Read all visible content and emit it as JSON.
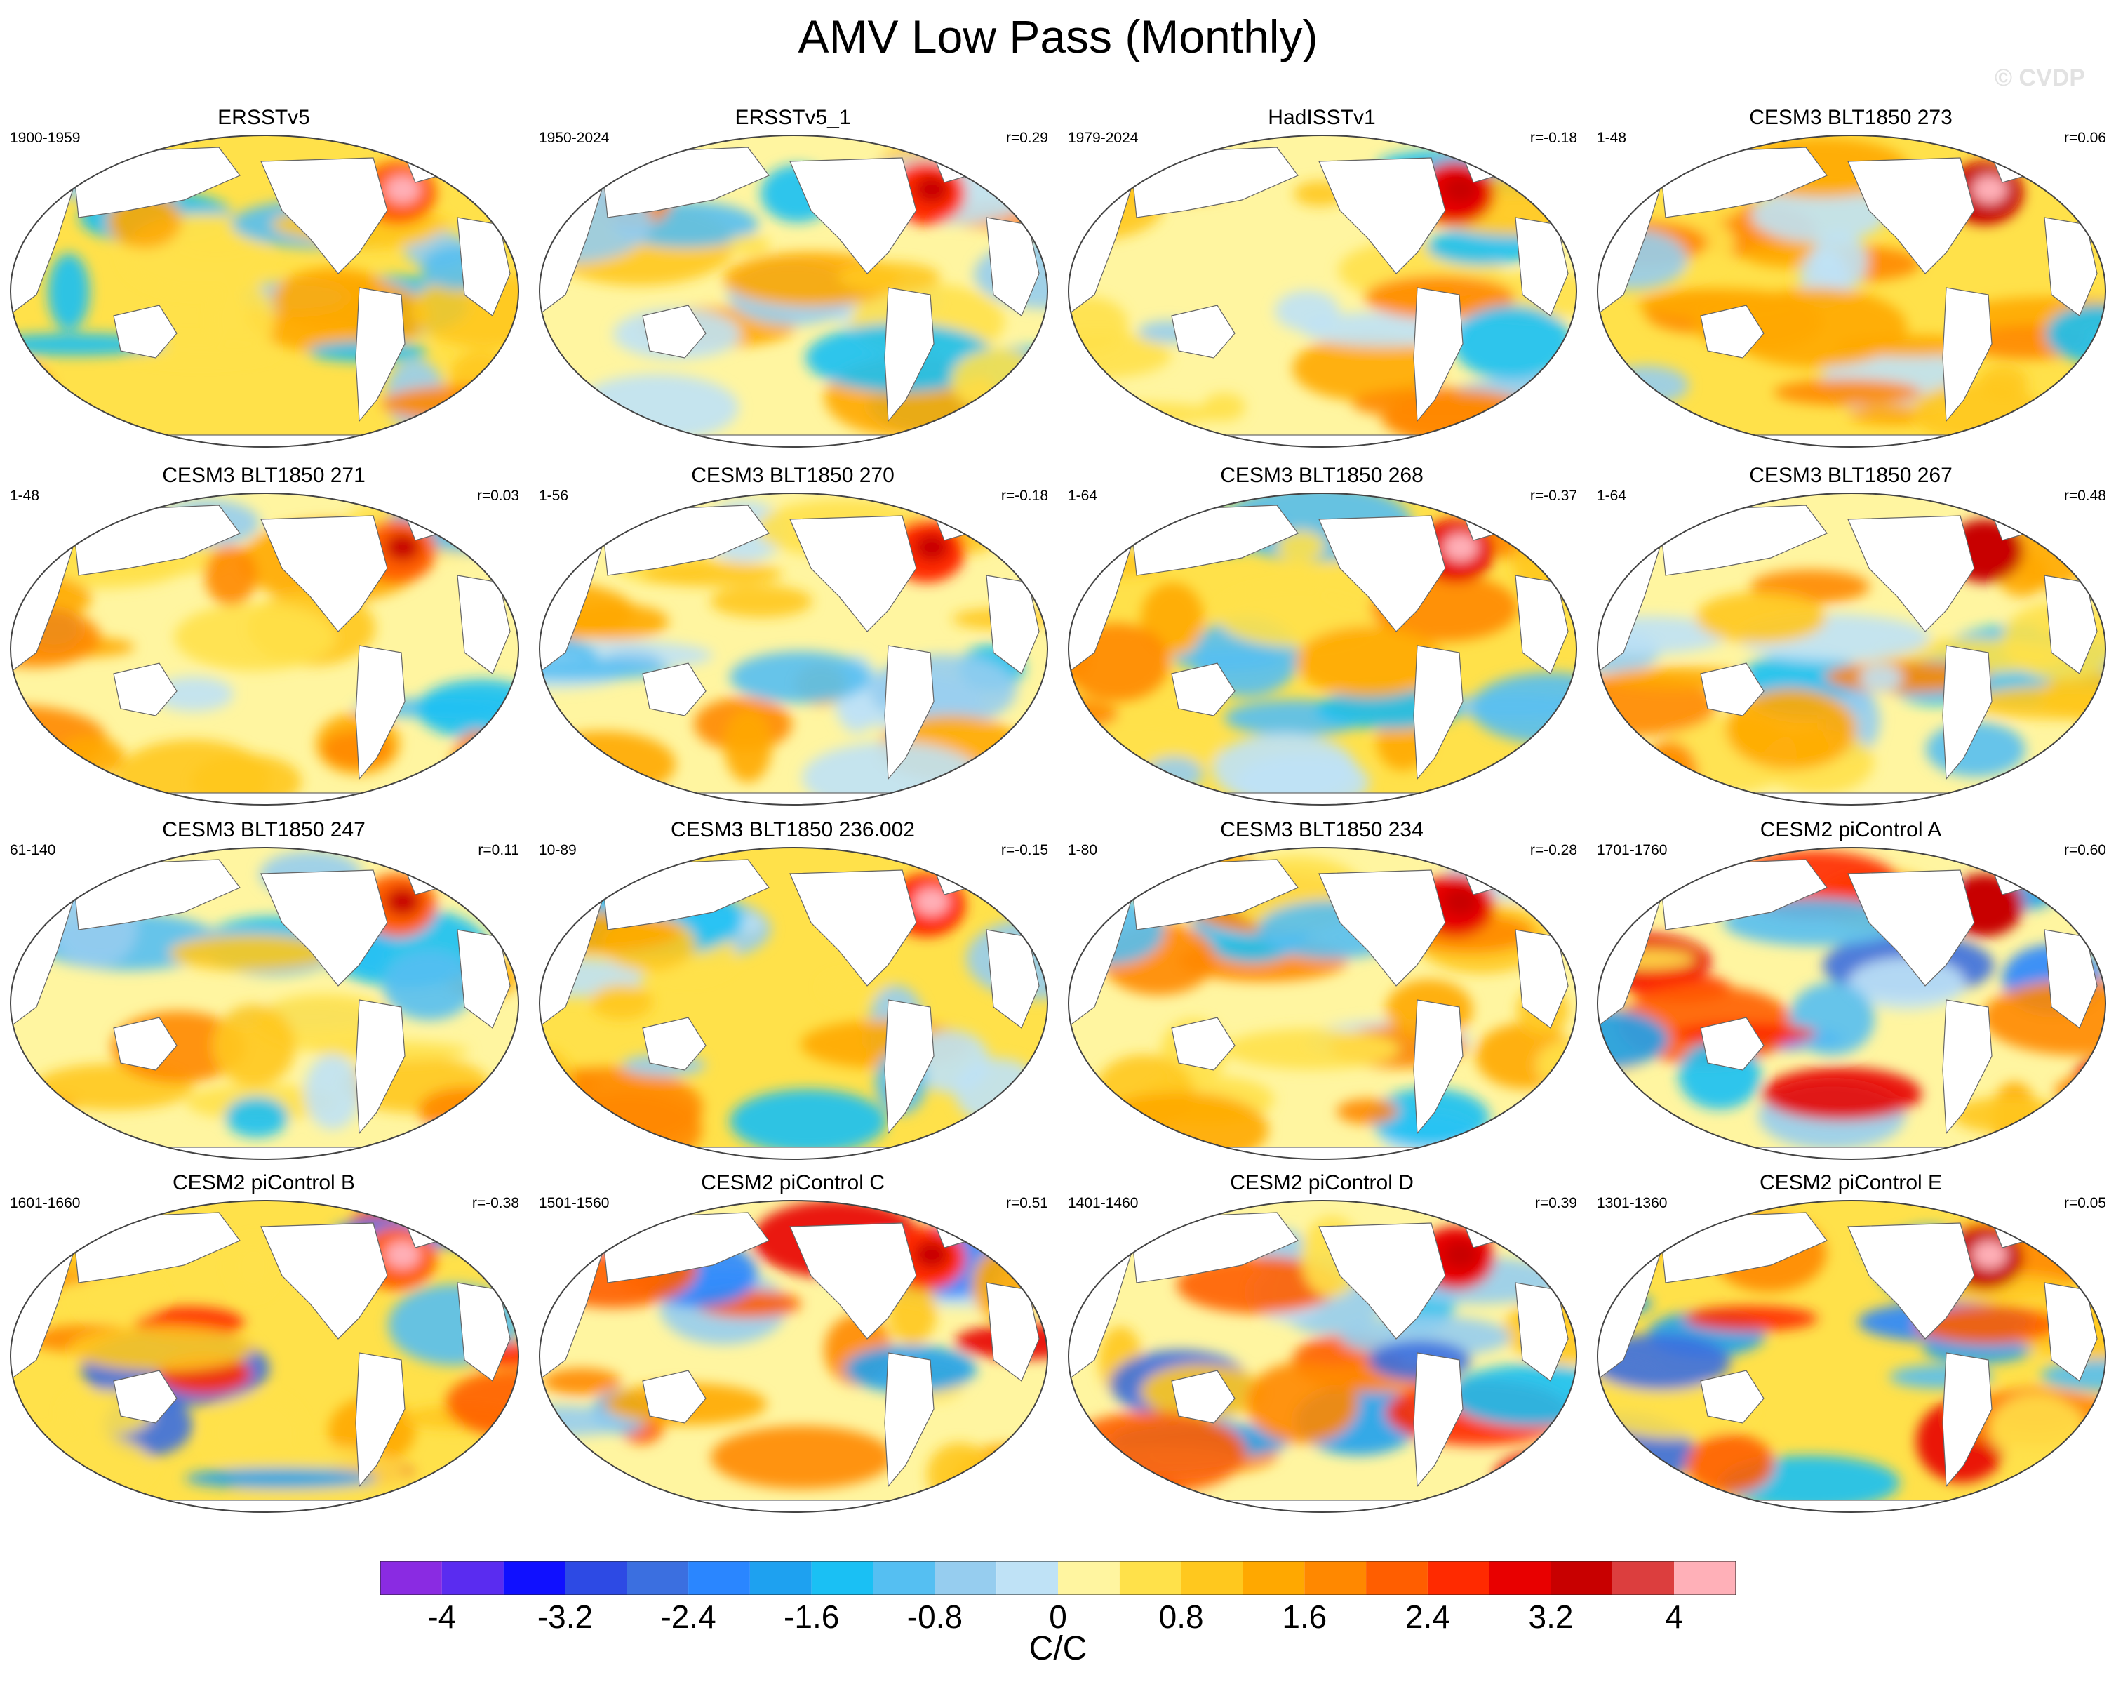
{
  "title": "AMV Low Pass (Monthly)",
  "watermark": "© CVDP",
  "units": "C/C",
  "colorbar": {
    "colors": [
      "#8a2be2",
      "#5a2cf0",
      "#1010ff",
      "#2d4ae4",
      "#3b6fe0",
      "#2a86ff",
      "#1ea1f0",
      "#1ac0f4",
      "#55bff2",
      "#96cdef",
      "#bfe2f6",
      "#fff5a0",
      "#ffe14a",
      "#ffc81e",
      "#ffa800",
      "#ff8800",
      "#ff5e00",
      "#ff2a00",
      "#e80000",
      "#c80000",
      "#dc3e3e",
      "#ffb0b8"
    ],
    "ticks": [
      "-4",
      "-3.2",
      "-2.4",
      "-1.6",
      "-0.8",
      "0",
      "0.8",
      "1.6",
      "2.4",
      "3.2",
      "4"
    ]
  },
  "panels": [
    {
      "title": "ERSSTv5",
      "period": "1900-1959",
      "corr": ""
    },
    {
      "title": "ERSSTv5_1",
      "period": "1950-2024",
      "corr": "r=0.29"
    },
    {
      "title": "HadISSTv1",
      "period": "1979-2024",
      "corr": "r=-0.18"
    },
    {
      "title": "CESM3 BLT1850 273",
      "period": "1-48",
      "corr": "r=0.06"
    },
    {
      "title": "CESM3 BLT1850 271",
      "period": "1-48",
      "corr": "r=0.03"
    },
    {
      "title": "CESM3 BLT1850 270",
      "period": "1-56",
      "corr": "r=-0.18"
    },
    {
      "title": "CESM3 BLT1850 268",
      "period": "1-64",
      "corr": "r=-0.37"
    },
    {
      "title": "CESM3 BLT1850 267",
      "period": "1-64",
      "corr": "r=0.48"
    },
    {
      "title": "CESM3 BLT1850 247",
      "period": "61-140",
      "corr": "r=0.11"
    },
    {
      "title": "CESM3 BLT1850 236.002",
      "period": "10-89",
      "corr": "r=-0.15"
    },
    {
      "title": "CESM3 BLT1850 234",
      "period": "1-80",
      "corr": "r=-0.28"
    },
    {
      "title": "CESM2 piControl A",
      "period": "1701-1760",
      "corr": "r=0.60"
    },
    {
      "title": "CESM2 piControl B",
      "period": "1601-1660",
      "corr": "r=-0.38"
    },
    {
      "title": "CESM2 piControl C",
      "period": "1501-1560",
      "corr": "r=0.51"
    },
    {
      "title": "CESM2 piControl D",
      "period": "1401-1460",
      "corr": "r=0.39"
    },
    {
      "title": "CESM2 piControl E",
      "period": "1301-1360",
      "corr": "r=0.05"
    }
  ]
}
